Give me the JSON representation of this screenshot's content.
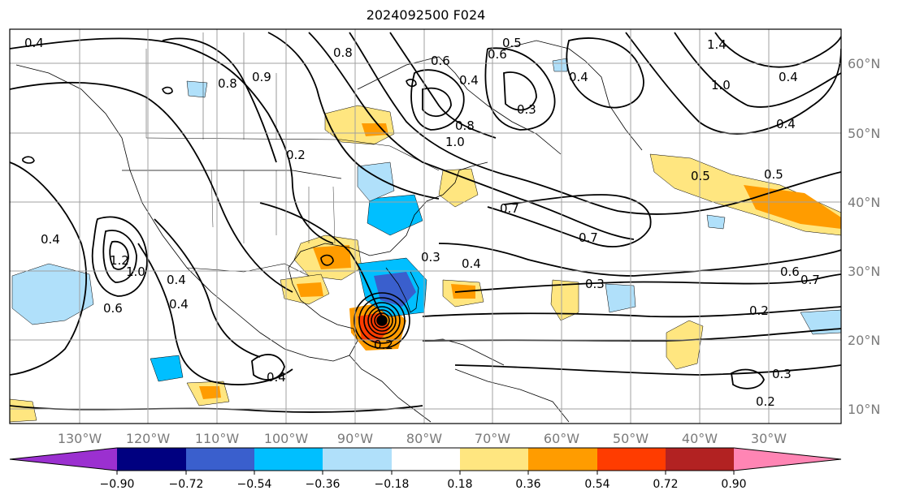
{
  "title": "2024092500 F024",
  "map": {
    "lon_labels": [
      "130°W",
      "120°W",
      "110°W",
      "100°W",
      "90°W",
      "80°W",
      "70°W",
      "60°W",
      "50°W",
      "40°W",
      "30°W"
    ],
    "lat_labels": [
      "60°N",
      "50°N",
      "40°N",
      "30°N",
      "20°N",
      "10°N"
    ],
    "contour_labels": [
      "0.4",
      "0.8",
      "0.6",
      "0.8",
      "0.9",
      "0.6",
      "0.4",
      "0.3",
      "0.5",
      "1.0",
      "0.8",
      "0.4",
      "1.4",
      "0.4",
      "0.4",
      "1.0",
      "0.2",
      "0.7",
      "0.7",
      "0.5",
      "0.5",
      "0.4",
      "1.2",
      "1.0",
      "0.4",
      "0.6",
      "0.4",
      "0.3",
      "0.4",
      "0.3",
      "0.7",
      "0.6",
      "0.2",
      "0.3",
      "0.2",
      "0.2",
      "0.4"
    ]
  },
  "colorbar": {
    "ticks": [
      "−0.90",
      "−0.72",
      "−0.54",
      "−0.36",
      "−0.18",
      "0.18",
      "0.36",
      "0.54",
      "0.72",
      "0.90"
    ],
    "colors": [
      "#9b30d0",
      "#000080",
      "#3a5fcd",
      "#00bfff",
      "#b0e0fa",
      "#ffffff",
      "#ffe680",
      "#ff9c00",
      "#ff3c00",
      "#b22222",
      "#ff85b4"
    ]
  },
  "colors": {
    "positive_light": "#ffe680",
    "positive_mid": "#ff9c00",
    "positive_high": "#ff3c00",
    "negative_light": "#b0e0fa",
    "negative_mid": "#00bfff",
    "negative_high": "#3a5fcd",
    "contour": "#000000",
    "grid": "#a0a0a0",
    "axis_label": "#7a7a7a"
  }
}
